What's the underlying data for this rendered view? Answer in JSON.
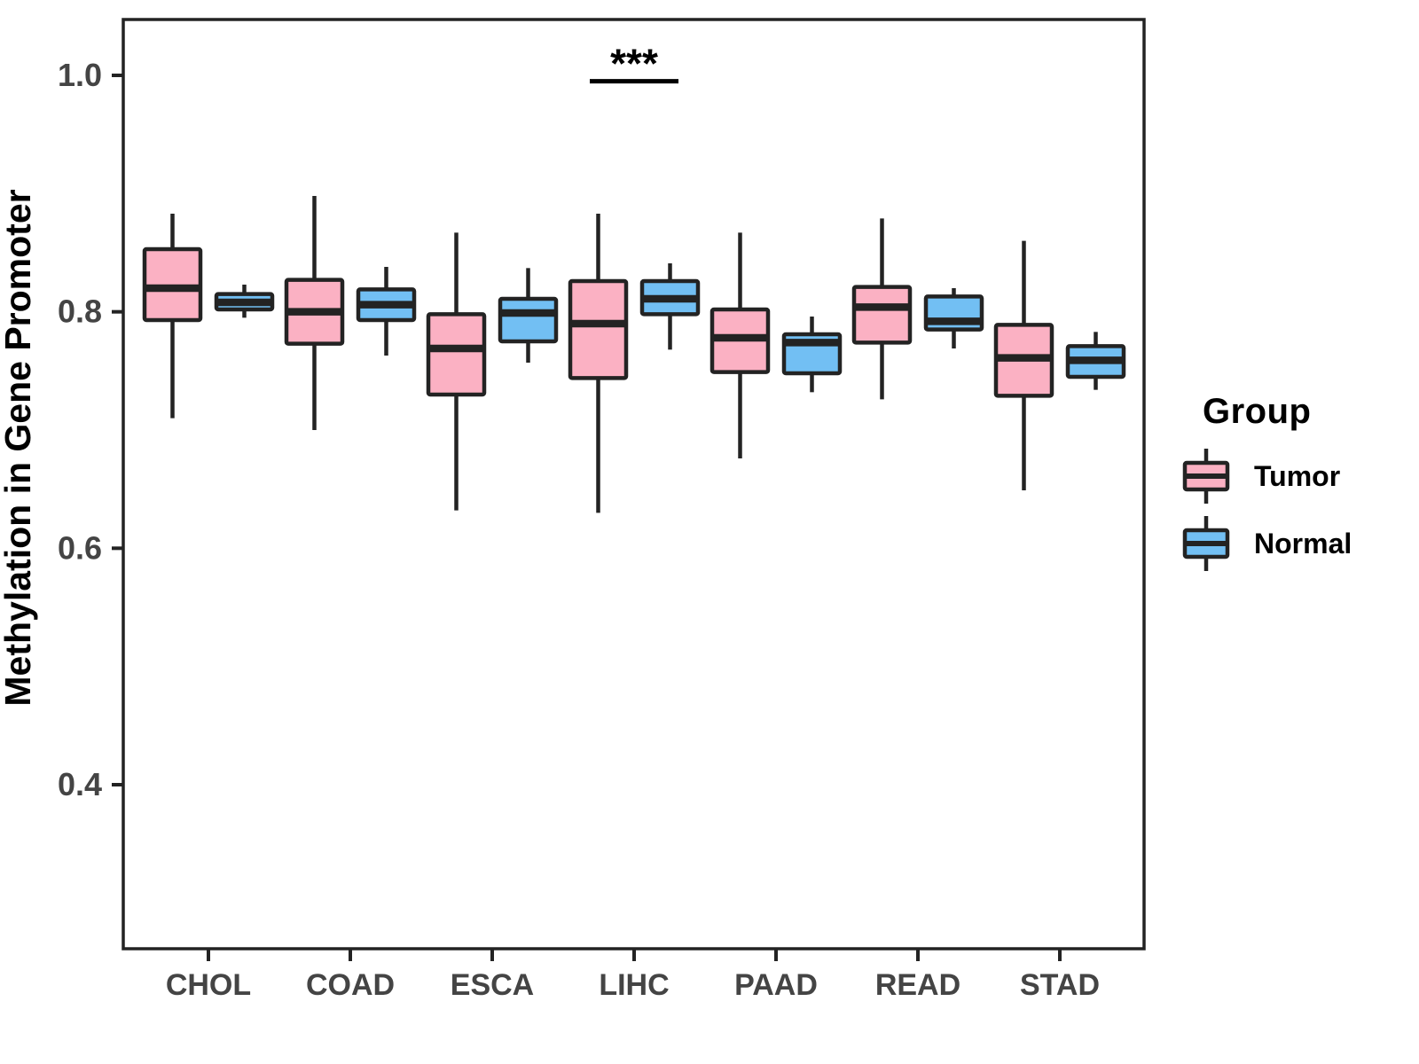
{
  "figure": {
    "background": "#ffffff",
    "y_axis": {
      "title": "Methylation in Gene Promoter",
      "tick_labels": [
        "1.0",
        "0.8",
        "0.6",
        "0.4"
      ],
      "tick_values": [
        1.0,
        0.8,
        0.6,
        0.4
      ]
    },
    "x_axis": {
      "tick_labels": [
        "CHOL",
        "COAD",
        "ESCA",
        "LIHC",
        "PAAD",
        "READ",
        "STAD"
      ]
    },
    "legend": {
      "title": "Group",
      "entries": [
        {
          "label": "Tumor",
          "fill": "#FBB1C3"
        },
        {
          "label": "Normal",
          "fill": "#72BFF3"
        }
      ]
    },
    "colors": {
      "tumor_fill": "#FBB1C3",
      "normal_fill": "#72BFF3",
      "stroke": "#232323",
      "axis_text": "#444444",
      "annotation": "#000000"
    }
  },
  "chart_data": {
    "type": "boxplot",
    "title": "",
    "xlabel": "",
    "ylabel": "Methylation in Gene Promoter",
    "ylim": [
      0.25,
      1.05
    ],
    "yticks": [
      0.4,
      0.6,
      0.8,
      1.0
    ],
    "grid": false,
    "legend_position": "right",
    "categories": [
      "CHOL",
      "COAD",
      "ESCA",
      "LIHC",
      "PAAD",
      "READ",
      "STAD"
    ],
    "series": [
      {
        "name": "Tumor",
        "fill": "#FBB1C3",
        "boxes": [
          {
            "category": "CHOL",
            "whisker_low": 0.71,
            "q1": 0.793,
            "median": 0.82,
            "q3": 0.853,
            "whisker_high": 0.883
          },
          {
            "category": "COAD",
            "whisker_low": 0.7,
            "q1": 0.773,
            "median": 0.8,
            "q3": 0.827,
            "whisker_high": 0.898
          },
          {
            "category": "ESCA",
            "whisker_low": 0.632,
            "q1": 0.73,
            "median": 0.769,
            "q3": 0.798,
            "whisker_high": 0.867
          },
          {
            "category": "LIHC",
            "whisker_low": 0.63,
            "q1": 0.744,
            "median": 0.79,
            "q3": 0.826,
            "whisker_high": 0.883
          },
          {
            "category": "PAAD",
            "whisker_low": 0.676,
            "q1": 0.749,
            "median": 0.778,
            "q3": 0.802,
            "whisker_high": 0.867
          },
          {
            "category": "READ",
            "whisker_low": 0.726,
            "q1": 0.774,
            "median": 0.804,
            "q3": 0.821,
            "whisker_high": 0.879
          },
          {
            "category": "STAD",
            "whisker_low": 0.649,
            "q1": 0.729,
            "median": 0.761,
            "q3": 0.789,
            "whisker_high": 0.86
          }
        ]
      },
      {
        "name": "Normal",
        "fill": "#72BFF3",
        "boxes": [
          {
            "category": "CHOL",
            "whisker_low": 0.795,
            "q1": 0.802,
            "median": 0.808,
            "q3": 0.815,
            "whisker_high": 0.823
          },
          {
            "category": "COAD",
            "whisker_low": 0.763,
            "q1": 0.793,
            "median": 0.806,
            "q3": 0.819,
            "whisker_high": 0.838
          },
          {
            "category": "ESCA",
            "whisker_low": 0.757,
            "q1": 0.775,
            "median": 0.799,
            "q3": 0.811,
            "whisker_high": 0.837
          },
          {
            "category": "LIHC",
            "whisker_low": 0.768,
            "q1": 0.798,
            "median": 0.811,
            "q3": 0.826,
            "whisker_high": 0.841
          },
          {
            "category": "PAAD",
            "whisker_low": 0.732,
            "q1": 0.748,
            "median": 0.774,
            "q3": 0.781,
            "whisker_high": 0.796
          },
          {
            "category": "READ",
            "whisker_low": 0.769,
            "q1": 0.785,
            "median": 0.792,
            "q3": 0.813,
            "whisker_high": 0.82
          },
          {
            "category": "STAD",
            "whisker_low": 0.734,
            "q1": 0.745,
            "median": 0.759,
            "q3": 0.771,
            "whisker_high": 0.783
          }
        ]
      }
    ],
    "annotations": [
      {
        "type": "significance",
        "category": "LIHC",
        "text": "***",
        "y": 0.995
      }
    ]
  }
}
